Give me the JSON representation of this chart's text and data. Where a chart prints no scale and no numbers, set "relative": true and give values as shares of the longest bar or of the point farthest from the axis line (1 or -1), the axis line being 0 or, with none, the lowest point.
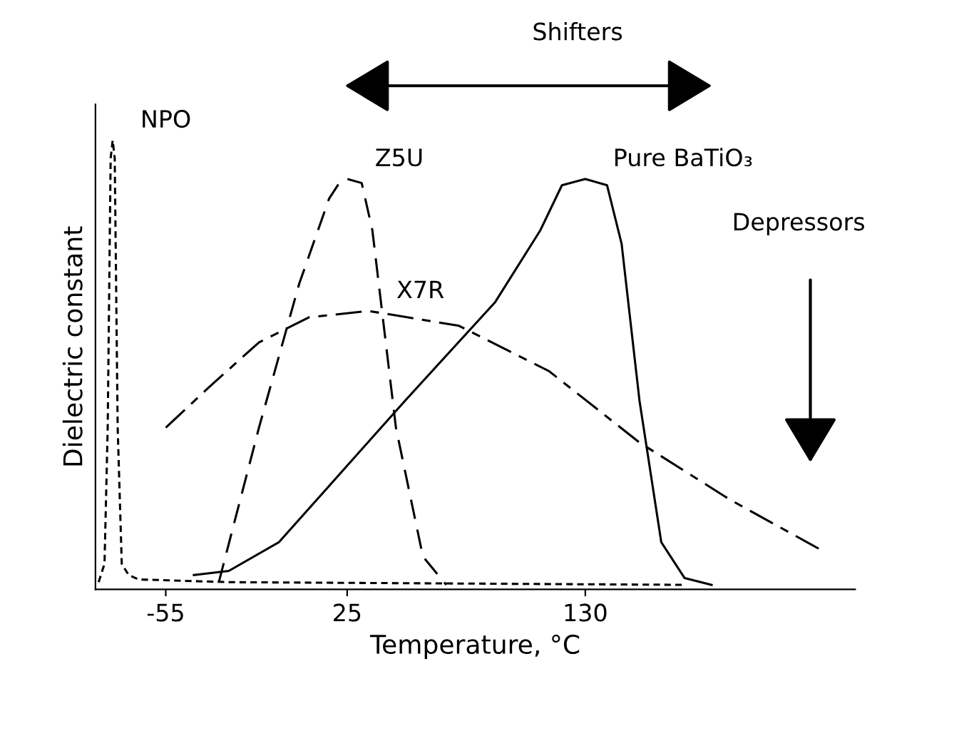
{
  "chart_data": {
    "type": "line",
    "relative": true,
    "xlabel": "Temperature, °C",
    "ylabel": "Dielectric constant",
    "xlim": [
      -86,
      249
    ],
    "xticks": [
      -55,
      25,
      130
    ],
    "grid": false,
    "legend": false,
    "marker": "none",
    "annotations": [
      "Shifters",
      "Depressors"
    ],
    "series": [
      {
        "name": "NPO",
        "color": "#000000",
        "line_style": "dotted",
        "x": [
          -84.6,
          -82,
          -80.6,
          -79.3,
          -78.4,
          -77.5,
          -76.2,
          -74.4,
          -71.4,
          -66.9,
          -27.2,
          173.8
        ],
        "values": [
          0.016,
          0.057,
          0.36,
          0.96,
          1.0,
          0.96,
          0.36,
          0.057,
          0.032,
          0.022,
          0.016,
          0.01
        ]
      },
      {
        "name": "Z5U",
        "color": "#000000",
        "line_style": "dashed",
        "x": [
          -31.6,
          -13.9,
          3.8,
          17.0,
          21.5,
          25,
          31.4,
          36.1,
          46.5,
          58.4,
          68.7
        ],
        "values": [
          0.016,
          0.36,
          0.68,
          0.87,
          0.905,
          0.914,
          0.905,
          0.8,
          0.36,
          0.073,
          0.01
        ]
      },
      {
        "name": "Pure BaTiO₃",
        "color": "#000000",
        "line_style": "solid",
        "x": [
          -42.6,
          -27.2,
          -5.1,
          17.0,
          50.5,
          90.3,
          110.2,
          119.7,
          130,
          139.6,
          146,
          153.9,
          163.5,
          173.8,
          185.7
        ],
        "values": [
          0.032,
          0.041,
          0.105,
          0.23,
          0.42,
          0.64,
          0.8,
          0.9,
          0.914,
          0.9,
          0.77,
          0.42,
          0.105,
          0.025,
          0.01
        ]
      },
      {
        "name": "X7R",
        "color": "#000000",
        "line_style": "dashdot",
        "x": [
          -55,
          -36,
          -13.9,
          8.2,
          34.5,
          74.3,
          114,
          153.9,
          193.7,
          233.5
        ],
        "values": [
          0.36,
          0.45,
          0.55,
          0.606,
          0.62,
          0.587,
          0.486,
          0.327,
          0.2,
          0.089
        ]
      }
    ]
  }
}
